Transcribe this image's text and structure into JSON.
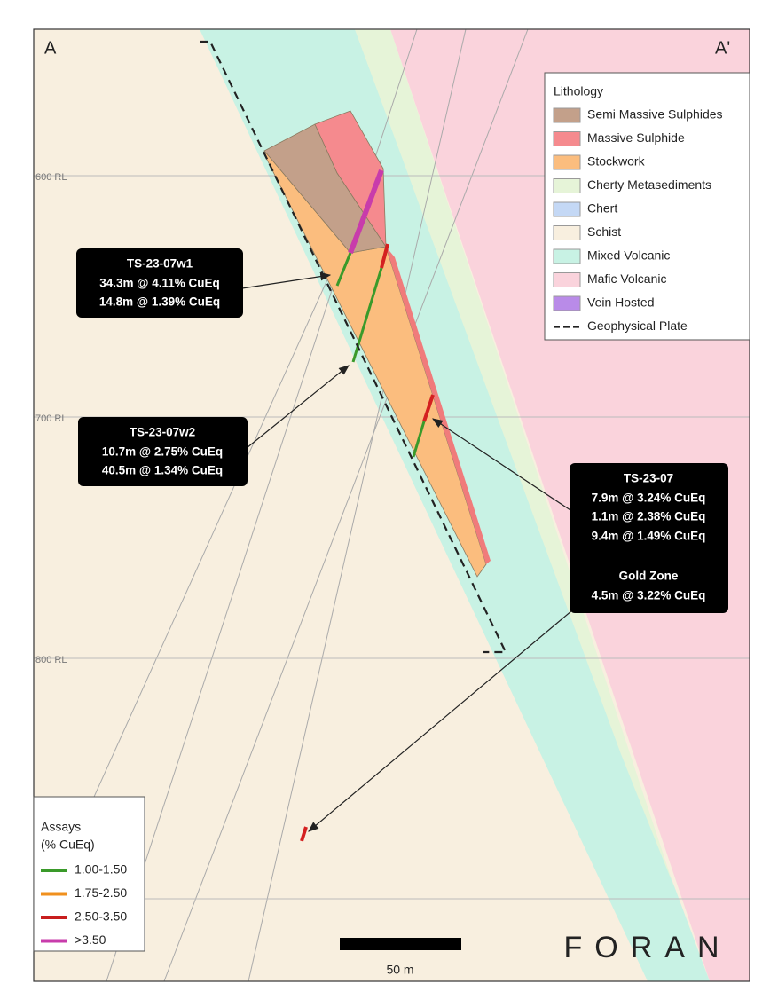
{
  "section": {
    "start": "A",
    "end": "A'"
  },
  "elevations": [
    "600 RL",
    "700 RL",
    "800 RL"
  ],
  "lithology_legend": {
    "title": "Lithology",
    "items": [
      "Semi Massive Sulphides",
      "Massive Sulphide",
      "Stockwork",
      "Cherty Metasediments",
      "Chert",
      "Schist",
      "Mixed Volcanic",
      "Mafic Volcanic",
      "Vein Hosted",
      "Geophysical Plate"
    ]
  },
  "callouts": [
    {
      "hole": "TS-23-07w1",
      "lines": [
        "34.3m @ 4.11% CuEq",
        "14.8m @ 1.39% CuEq"
      ]
    },
    {
      "hole": "TS-23-07w2",
      "lines": [
        "10.7m @ 2.75% CuEq",
        "40.5m @ 1.34% CuEq"
      ]
    },
    {
      "hole": "TS-23-07",
      "lines": [
        "7.9m @ 3.24% CuEq",
        "1.1m @ 2.38% CuEq",
        "9.4m @ 1.49% CuEq"
      ],
      "zone": "Gold Zone",
      "zone_lines": [
        "4.5m @ 3.22% CuEq"
      ]
    }
  ],
  "assays_legend": {
    "title_lines": [
      "Assays",
      "(% CuEq)"
    ],
    "items": [
      "1.00-1.50",
      "1.75-2.50",
      "2.50-3.50",
      ">3.50"
    ]
  },
  "scale_bar": "50 m",
  "logo": "FORAN"
}
